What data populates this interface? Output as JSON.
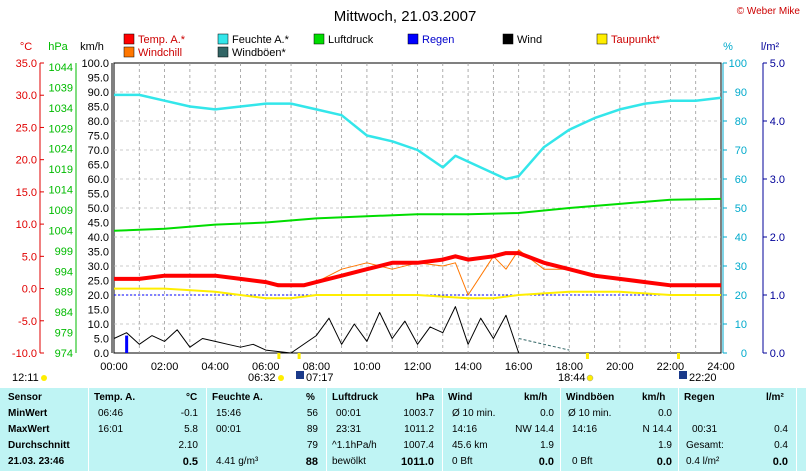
{
  "title": "Mittwoch, 21.03.2007",
  "copyright": "© Weber Mike",
  "colors": {
    "temp": "#ff0000",
    "feuchte": "#33e6ea",
    "druck": "#00dd00",
    "regen": "#0000ff",
    "wind": "#000000",
    "taupunkt": "#ffee00",
    "windchill": "#ff7700",
    "windboeen": "#336666",
    "axis_temp": "#e00000",
    "axis_druck": "#00bb00",
    "axis_feuchte": "#00aacc",
    "axis_regen": "#000099"
  },
  "axes": {
    "temp_unit": "°C",
    "druck_unit": "hPa",
    "wind_unit": "km/h",
    "feuchte_unit": "%",
    "regen_unit": "l/m²",
    "temp_ticks": [
      "35.0",
      "30.0",
      "25.0",
      "20.0",
      "15.0",
      "10.0",
      "5.0",
      "0.0",
      "-5.0",
      "-10.0"
    ],
    "druck_ticks": [
      "1044",
      "1039",
      "1034",
      "1029",
      "1024",
      "1019",
      "1014",
      "1009",
      "1004",
      "999",
      "994",
      "989",
      "984",
      "979",
      "974"
    ],
    "wind_ticks": [
      "100.0",
      "95.0",
      "90.0",
      "85.0",
      "80.0",
      "75.0",
      "70.0",
      "65.0",
      "60.0",
      "55.0",
      "50.0",
      "45.0",
      "40.0",
      "35.0",
      "30.0",
      "25.0",
      "20.0",
      "15.0",
      "10.0",
      "5.0",
      "0.0"
    ],
    "feuchte_ticks": [
      "100",
      "90",
      "80",
      "70",
      "60",
      "50",
      "40",
      "30",
      "20",
      "10",
      "0"
    ],
    "regen_ticks": [
      "5.0",
      "4.0",
      "3.0",
      "2.0",
      "1.0",
      "0.0"
    ],
    "time_ticks": [
      "00:00",
      "02:00",
      "04:00",
      "06:00",
      "08:00",
      "10:00",
      "12:00",
      "14:00",
      "16:00",
      "18:00",
      "20:00",
      "22:00",
      "24:00"
    ]
  },
  "legend": [
    {
      "label": "Temp. A.*",
      "color": "#ff0000"
    },
    {
      "label": "Feuchte A.*",
      "color": "#33e6ea"
    },
    {
      "label": "Luftdruck",
      "color": "#00dd00"
    },
    {
      "label": "Regen",
      "color": "#0000ff"
    },
    {
      "label": "Wind",
      "color": "#000000"
    },
    {
      "label": "Taupunkt*",
      "color": "#ffee00"
    },
    {
      "label": "Windchill",
      "color": "#ff7700"
    },
    {
      "label": "Windböen*",
      "color": "#336666"
    }
  ],
  "sun": {
    "moonset": "12:11",
    "dawn": "06:32",
    "sunrise": "07:17",
    "sunset": "18:44",
    "dusk": "22:20"
  },
  "chart_data": {
    "type": "line",
    "xlabel": "",
    "xlim": [
      0,
      24
    ],
    "ylim_temp": [
      -10,
      35
    ],
    "ylim_druck": [
      974,
      1044
    ],
    "ylim_wind": [
      0,
      100
    ],
    "ylim_feuchte": [
      0,
      100
    ],
    "ylim_regen": [
      0,
      5
    ],
    "series": [
      {
        "name": "Temp. A.*",
        "axis": "temp",
        "x": [
          0,
          1,
          2,
          3,
          4,
          5,
          6,
          6.5,
          7,
          7.5,
          8,
          9,
          10,
          11,
          12,
          13,
          13.5,
          14,
          15,
          15.5,
          16,
          17,
          18,
          19,
          20,
          21,
          22,
          23,
          24
        ],
        "values": [
          1.5,
          1.5,
          2,
          2,
          2,
          1.5,
          1,
          0.5,
          0.5,
          0.5,
          1,
          2,
          3,
          4,
          4,
          4.5,
          5,
          4.5,
          5,
          5.5,
          5.5,
          4,
          3,
          2,
          1.5,
          1,
          0.5,
          0.5,
          0.5
        ]
      },
      {
        "name": "Feuchte A.*",
        "axis": "feuchte",
        "x": [
          0,
          1,
          2,
          3,
          4,
          5,
          6,
          7,
          8,
          9,
          10,
          11,
          12,
          13,
          13.5,
          14,
          15,
          15.5,
          16,
          17,
          18,
          19,
          20,
          21,
          22,
          23,
          24
        ],
        "values": [
          89,
          89,
          87,
          85,
          84,
          85,
          86,
          86,
          84,
          82,
          75,
          73,
          70,
          64,
          68,
          66,
          62,
          60,
          61,
          71,
          77,
          81,
          84,
          86,
          87,
          87,
          88
        ]
      },
      {
        "name": "Luftdruck",
        "axis": "druck",
        "x": [
          0,
          2,
          4,
          6,
          8,
          10,
          12,
          13,
          14,
          16,
          18,
          20,
          22,
          24
        ],
        "values": [
          1003.5,
          1004,
          1005,
          1005.5,
          1006.5,
          1007,
          1007.5,
          1007.5,
          1007.5,
          1007.8,
          1009,
          1010,
          1011,
          1011.2
        ]
      },
      {
        "name": "Taupunkt*",
        "axis": "temp",
        "x": [
          0,
          2,
          4,
          6,
          7,
          8,
          10,
          12,
          14,
          15,
          16,
          18,
          20,
          22,
          24
        ],
        "values": [
          0,
          0,
          -0.5,
          -1.5,
          -1.5,
          -1,
          -1,
          -1,
          -1.5,
          -1.5,
          -1,
          -0.5,
          -0.5,
          -1,
          -1
        ]
      },
      {
        "name": "Windchill",
        "axis": "temp",
        "x": [
          0,
          1,
          2,
          3,
          4,
          5,
          6,
          7,
          7.5,
          8,
          9,
          10,
          11,
          12,
          13,
          13.5,
          14,
          15,
          15.5,
          16,
          17,
          18,
          19,
          20,
          21,
          22,
          23,
          24
        ],
        "values": [
          1.5,
          1.5,
          2,
          2,
          2,
          1.5,
          1,
          0.5,
          0.5,
          1,
          3,
          4,
          3,
          4,
          3.5,
          4,
          -1,
          5,
          3,
          6,
          3,
          3,
          2,
          1.5,
          1,
          0.5,
          0.5,
          0.5
        ]
      },
      {
        "name": "Wind",
        "axis": "wind",
        "x": [
          0,
          0.5,
          1,
          1.5,
          2,
          2.5,
          3,
          3.5,
          4,
          4.5,
          5,
          5.5,
          6,
          7,
          8,
          8.5,
          9,
          9.5,
          10,
          10.5,
          11,
          11.5,
          12,
          12.5,
          13,
          13.5,
          14,
          14.5,
          15,
          15.5,
          16
        ],
        "values": [
          5,
          7,
          3,
          6,
          4,
          8,
          2,
          5,
          4,
          3,
          2,
          3,
          1,
          0,
          6,
          12,
          3,
          10,
          4,
          14,
          5,
          11,
          3,
          9,
          7,
          16,
          3,
          12,
          5,
          13,
          0
        ]
      },
      {
        "name": "Windböen*",
        "axis": "wind",
        "x": [
          16,
          17,
          18
        ],
        "values": [
          5,
          3,
          1
        ]
      },
      {
        "name": "Regen",
        "axis": "regen",
        "x": [
          0.5
        ],
        "values": [
          0.3
        ]
      }
    ]
  },
  "summary": {
    "headers": {
      "sensor": "Sensor",
      "temp": "Temp. A.",
      "temp_unit": "°C",
      "feuchte": "Feuchte A.",
      "feuchte_unit": "%",
      "druck": "Luftdruck",
      "druck_unit": "hPa",
      "wind": "Wind",
      "wind_unit": "km/h",
      "boeen": "Windböen",
      "boeen_unit": "km/h",
      "regen": "Regen",
      "regen_unit": "l/m²"
    },
    "row_labels": {
      "min": "MinWert",
      "max": "MaxWert",
      "avg": "Durchschnitt",
      "now": "21.03. 23:46"
    },
    "temp": {
      "min_time": "06:46",
      "min_val": "-0.1",
      "max_time": "16:01",
      "max_val": "5.8",
      "avg": "2.10",
      "now": "0.5"
    },
    "feuchte": {
      "min_time": "15:46",
      "min_val": "56",
      "max_time": "00:01",
      "max_val": "89",
      "avg": "79",
      "now_extra": "4.41 g/m³",
      "now": "88"
    },
    "druck": {
      "min_time": "00:01",
      "min_val": "1003.7",
      "max_time": "23:31",
      "max_val": "1011.2",
      "avg_label": "^1.1hPa/h",
      "avg": "1007.4",
      "now_extra": "bewölkt",
      "now": "1011.0"
    },
    "wind": {
      "min_label": "Ø 10 min.",
      "min_val": "0.0",
      "max_time": "14:16",
      "max_dir": "NW 14.4",
      "avg_label": "45.6 km",
      "avg": "1.9",
      "now_extra": "0 Bft",
      "now": "0.0"
    },
    "boeen": {
      "min_label": "Ø 10 min.",
      "min_val": "0.0",
      "max_time": "14:16",
      "max_dir": "N 14.4",
      "avg": "1.9",
      "now_extra": "0 Bft",
      "now": "0.0"
    },
    "regen": {
      "max_time": "00:31",
      "max_val": "0.4",
      "total_label": "Gesamt:",
      "total_val": "0.4",
      "now_extra": "0.4 l/m²",
      "now": "0.0"
    }
  }
}
